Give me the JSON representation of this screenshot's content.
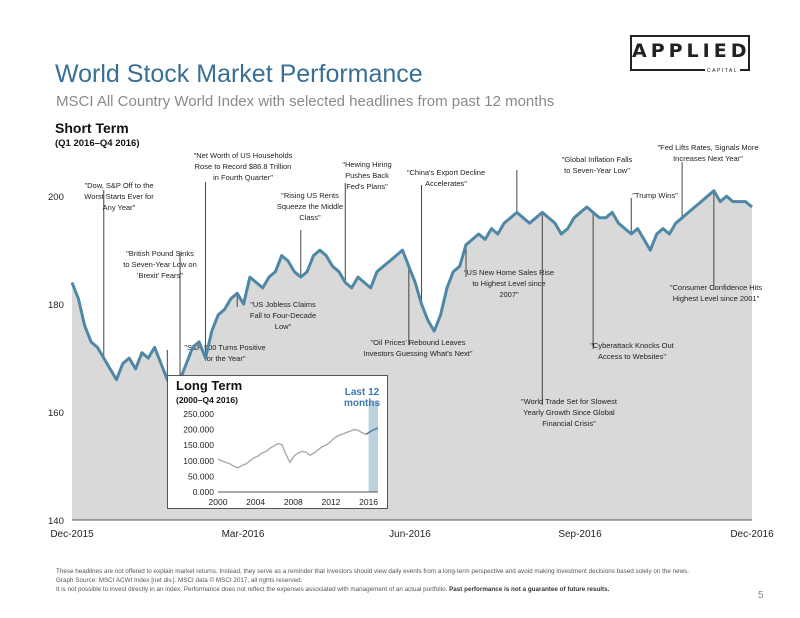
{
  "logo": {
    "main": "APPLIED",
    "sub": "CAPITAL"
  },
  "title": "World Stock Market Performance",
  "subtitle": "MSCI All Country World Index with selected headlines from past 12 months",
  "short_term": {
    "heading": "Short Term",
    "range": "(Q1 2016–Q4 2016)"
  },
  "long_term": {
    "heading": "Long Term",
    "range": "(2000–Q4 2016)",
    "highlight_label": "Last 12 months"
  },
  "colors": {
    "line": "#4f87a6",
    "area": "#d9d9d9",
    "highlight": "#bcd1dd",
    "title": "#3a6f95"
  },
  "chart_data": [
    {
      "type": "area",
      "x_ticks": [
        "Dec-2015",
        "Mar-2016",
        "Jun-2016",
        "Sep-2016",
        "Dec-2016"
      ],
      "y_ticks": [
        "140",
        "160",
        "180",
        "200"
      ],
      "ylim": [
        140,
        203
      ],
      "grid": false,
      "series": [
        {
          "values": [
            184,
            181,
            176,
            173,
            172,
            170,
            168,
            166,
            169,
            170,
            168,
            171,
            170,
            172,
            169,
            166,
            164,
            166,
            169,
            172,
            173,
            170,
            175,
            178,
            179,
            181,
            182,
            180,
            185,
            184,
            183,
            185,
            186,
            189,
            188,
            186,
            185,
            186,
            189,
            190,
            189,
            187,
            186,
            184,
            183,
            185,
            184,
            183,
            186,
            187,
            188,
            189,
            190,
            187,
            184,
            180,
            177,
            175,
            178,
            183,
            186,
            187,
            191,
            192,
            193,
            192,
            194,
            193,
            195,
            196,
            197,
            196,
            195,
            196,
            197,
            196,
            195,
            193,
            194,
            196,
            197,
            198,
            197,
            196,
            196,
            197,
            195,
            194,
            193,
            194,
            192,
            190,
            193,
            194,
            193,
            195,
            196,
            197,
            198,
            199,
            200,
            201,
            199,
            200,
            199,
            199,
            199,
            198
          ]
        }
      ],
      "headlines": [
        {
          "id": "h1",
          "text": "\"Dow, S&P Off to the Worst Starts Ever for Any Year\""
        },
        {
          "id": "h2",
          "text": "\"British Pound Sinks to Seven-Year Low on 'Brexit' Fears\""
        },
        {
          "id": "h3",
          "text": "\"S&P 500 Turns Positive for the Year\""
        },
        {
          "id": "h4",
          "text": "\"Net Worth of US Households Rose to Record $86.8 Trillion in Fourth Quarter\""
        },
        {
          "id": "h5",
          "text": "\"US Jobless Claims Fall to Four-Decade Low\""
        },
        {
          "id": "h6",
          "text": "\"Rising US Rents Squeeze the Middle Class\""
        },
        {
          "id": "h7",
          "text": "\"Hewing Hiring Pushes Back Fed's Plans\""
        },
        {
          "id": "h8",
          "text": "\"Oil Prices' Rebound Leaves Investors Guessing What's Next\""
        },
        {
          "id": "h9",
          "text": "\"China's Export Decline Accelerates\""
        },
        {
          "id": "h10",
          "text": "\"US New Home Sales Rise to Highest Level since 2007\""
        },
        {
          "id": "h11",
          "text": "\"Global Inflation Falls to Seven-Year Low\""
        },
        {
          "id": "h12",
          "text": "\"World Trade Set for Slowest Yearly Growth Since Global Financial Crisis\""
        },
        {
          "id": "h13",
          "text": "\"Cyberattack Knocks Out Access to Websites\""
        },
        {
          "id": "h14",
          "text": "\"Trump Wins\""
        },
        {
          "id": "h15",
          "text": "\"Fed Lifts Rates, Signals More Increases Next Year\""
        },
        {
          "id": "h16",
          "text": "\"Consumer Confidence Hits Highest Level since 2001\""
        }
      ]
    },
    {
      "type": "line",
      "x_ticks": [
        "2000",
        "2004",
        "2008",
        "2012",
        "2016"
      ],
      "y_ticks": [
        "0.000",
        "50.000",
        "100.000",
        "150.000",
        "200.000",
        "250.000"
      ],
      "xlim": [
        2000,
        2017
      ],
      "ylim": [
        0,
        250000
      ],
      "highlight_range": [
        2016,
        2017
      ],
      "series": [
        {
          "values": [
            105000,
            100000,
            95000,
            90000,
            82000,
            78000,
            85000,
            90000,
            100000,
            110000,
            115000,
            125000,
            130000,
            140000,
            148000,
            155000,
            152000,
            120000,
            95000,
            115000,
            125000,
            130000,
            128000,
            118000,
            125000,
            135000,
            145000,
            150000,
            160000,
            172000,
            180000,
            185000,
            190000,
            195000,
            200000,
            198000,
            190000,
            185000,
            193000,
            200000,
            205000
          ]
        }
      ]
    }
  ],
  "footnotes": {
    "line1": "These headlines are not offered to explain market returns. Instead, they serve as a reminder that investors should view daily events from a long-term perspective and avoid making investment decisions based solely on the news.",
    "line2": "Graph Source: MSCI ACWI Index [net div.]. MSCI data © MSCI 2017, all rights reserved.",
    "line3": "It is not possible to invest directly in an index. Performance does not reflect the expenses associated with management of an actual portfolio.",
    "line3_bold": "Past performance is not a guarantee of future results."
  },
  "page_number": "5"
}
